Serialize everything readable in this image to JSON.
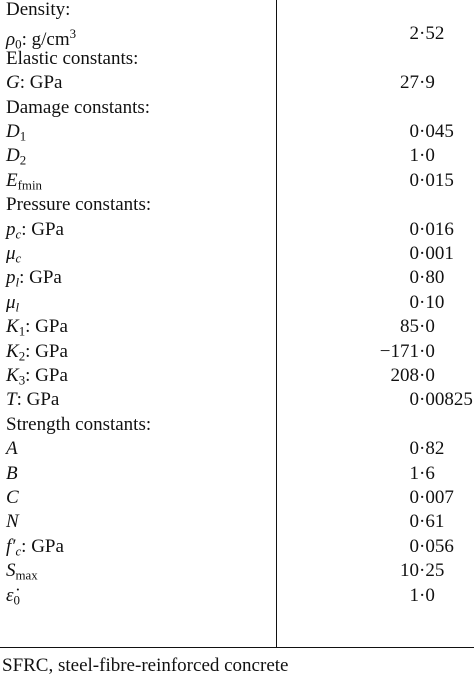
{
  "rows": [
    {
      "kind": "header",
      "label": "Density:"
    },
    {
      "kind": "param",
      "sym": "ρ",
      "sub": "0",
      "sub_italic": false,
      "sup": "3",
      "unit": ": g/cm",
      "value": "2·52"
    },
    {
      "kind": "header",
      "label": "Elastic constants:"
    },
    {
      "kind": "param",
      "sym": "G",
      "unit": ": GPa",
      "value": "27·9"
    },
    {
      "kind": "header",
      "label": "Damage constants:"
    },
    {
      "kind": "param",
      "sym": "D",
      "sub": "1",
      "value": "0·045"
    },
    {
      "kind": "param",
      "sym": "D",
      "sub": "2",
      "value": "1·0"
    },
    {
      "kind": "param",
      "sym": "E",
      "sub": "fmin",
      "value": "0·015"
    },
    {
      "kind": "header",
      "label": "Pressure constants:"
    },
    {
      "kind": "param",
      "sym": "p",
      "sub": "c",
      "unit": ": GPa",
      "value": "0·016"
    },
    {
      "kind": "param",
      "sym": "μ",
      "sub": "c",
      "value": "0·001"
    },
    {
      "kind": "param",
      "sym": "p",
      "sub": "l",
      "unit": ": GPa",
      "value": "0·80"
    },
    {
      "kind": "param",
      "sym": "μ",
      "sub": "l",
      "value": "0·10"
    },
    {
      "kind": "param",
      "sym": "K",
      "sub": "1",
      "unit": ": GPa",
      "value": "85·0"
    },
    {
      "kind": "param",
      "sym": "K",
      "sub": "2",
      "unit": ": GPa",
      "value": "−171·0"
    },
    {
      "kind": "param",
      "sym": "K",
      "sub": "3",
      "unit": ": GPa",
      "value": "208·0"
    },
    {
      "kind": "param",
      "sym": "T",
      "unit": ": GPa",
      "value": "0·00825"
    },
    {
      "kind": "header",
      "label": "Strength constants:"
    },
    {
      "kind": "param",
      "sym": "A",
      "value": "0·82"
    },
    {
      "kind": "param",
      "sym": "B",
      "value": "1·6"
    },
    {
      "kind": "param",
      "sym": "C",
      "value": "0·007"
    },
    {
      "kind": "param",
      "sym": "N",
      "value": "0·61"
    },
    {
      "kind": "param",
      "sym": "f′",
      "sub": "c",
      "unit": ": GPa",
      "value": "0·056"
    },
    {
      "kind": "param",
      "sym": "S",
      "sub": "max",
      "value": "10·25"
    },
    {
      "kind": "param",
      "sym": "ε̇",
      "sub": "0",
      "value": "1·0"
    }
  ],
  "footnote": "SFRC, steel-fibre-reinforced concrete"
}
